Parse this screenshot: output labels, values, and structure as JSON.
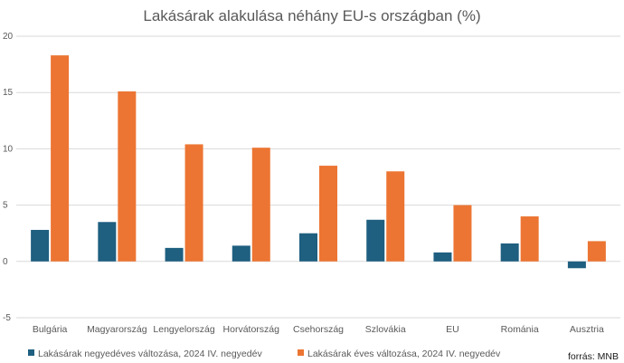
{
  "chart_data": {
    "type": "bar",
    "title": "Lakásárak alakulása néhány EU-s országban (%)",
    "categories": [
      "Bulgária",
      "Magyarország",
      "Lengyelország",
      "Horvátország",
      "Csehország",
      "Szlovákia",
      "EU",
      "Románia",
      "Ausztria"
    ],
    "series": [
      {
        "name": "Lakásárak negyedéves változása, 2024 IV. negyedév",
        "color": "#1f5f80",
        "values": [
          2.8,
          3.5,
          1.2,
          1.4,
          2.5,
          3.7,
          0.8,
          1.6,
          -0.6
        ]
      },
      {
        "name": "Lakásárak éves változása, 2024 IV. negyedév",
        "color": "#ec7533",
        "values": [
          18.3,
          15.1,
          10.4,
          10.1,
          8.5,
          8.0,
          5.0,
          4.0,
          1.8
        ]
      }
    ],
    "ylim": [
      -5,
      20
    ],
    "yticks": [
      -5,
      0,
      5,
      10,
      15,
      20
    ],
    "xlabel": "",
    "ylabel": "",
    "grid": true,
    "legend_position": "bottom-left",
    "source": "forrás: MNB"
  }
}
